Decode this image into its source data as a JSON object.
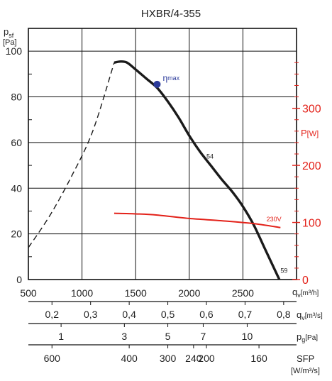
{
  "chart_data": {
    "type": "line",
    "title": "HXBR/4-355",
    "ylabel": {
      "main": "p",
      "sub": "sf",
      "unit": "[Pa]"
    },
    "y2label": {
      "main": "P",
      "unit": "[W]"
    },
    "xlabel": {
      "main": "q",
      "sub": "v",
      "unit": "[m³/h]"
    },
    "xlim": [
      500,
      3000
    ],
    "ylim": [
      0,
      110
    ],
    "y2lim": [
      0,
      440
    ],
    "x_ticks": [
      "500",
      "1000",
      "1500",
      "2000",
      "2500"
    ],
    "y_ticks": [
      "0",
      "20",
      "40",
      "60",
      "80",
      "100"
    ],
    "y2_ticks": [
      "0",
      "100",
      "200",
      "300"
    ],
    "grid": true,
    "series": [
      {
        "name": "",
        "role": "pressure-unstable",
        "style": "dashed",
        "color": "#1a1a1a",
        "points": [
          [
            500,
            14
          ],
          [
            700,
            28
          ],
          [
            900,
            45
          ],
          [
            1100,
            65
          ],
          [
            1300,
            95
          ]
        ]
      },
      {
        "name": "",
        "role": "pressure",
        "style": "solid",
        "color": "#1a1a1a",
        "points": [
          [
            1300,
            95
          ],
          [
            1360,
            95.5
          ],
          [
            1420,
            95
          ],
          [
            1500,
            92
          ],
          [
            1600,
            88
          ],
          [
            1700,
            84
          ],
          [
            1800,
            78
          ],
          [
            1900,
            71
          ],
          [
            2000,
            63
          ],
          [
            2100,
            56
          ],
          [
            2200,
            50
          ],
          [
            2300,
            44
          ],
          [
            2400,
            38.5
          ],
          [
            2500,
            32
          ],
          [
            2600,
            24
          ],
          [
            2700,
            14
          ],
          [
            2800,
            4
          ],
          [
            2840,
            0
          ]
        ]
      },
      {
        "name": "230V",
        "role": "power",
        "style": "solid",
        "color": "#e32119",
        "axis": "right",
        "points": [
          [
            1300,
            116
          ],
          [
            1500,
            115
          ],
          [
            1700,
            113
          ],
          [
            2000,
            107
          ],
          [
            2300,
            103
          ],
          [
            2600,
            98
          ],
          [
            2850,
            91
          ]
        ]
      }
    ],
    "marker": {
      "label_main": "η",
      "label_sub": "max",
      "x": 1700,
      "y": 85.5,
      "color": "#2b3a9a"
    },
    "annotations": [
      {
        "text": "54",
        "x": 2160,
        "y": 53
      },
      {
        "text": "230V",
        "x": 2720,
        "y": 25.5
      },
      {
        "text": "59",
        "x": 2850,
        "y": 3
      }
    ],
    "secondary_scales": [
      {
        "label_main": "q",
        "label_sub": "v",
        "unit": "[m³/s]",
        "ticks": [
          {
            "label": "0,2",
            "x": 720
          },
          {
            "label": "0,3",
            "x": 1080
          },
          {
            "label": "0,4",
            "x": 1440
          },
          {
            "label": "0,5",
            "x": 1800
          },
          {
            "label": "0,6",
            "x": 2160
          },
          {
            "label": "0,7",
            "x": 2520
          },
          {
            "label": "0,8",
            "x": 2880
          }
        ]
      },
      {
        "label_main": "p",
        "label_sub": "g",
        "unit": "[Pa]",
        "ticks": [
          {
            "label": "1",
            "x": 805
          },
          {
            "label": "3",
            "x": 1395
          },
          {
            "label": "5",
            "x": 1800
          },
          {
            "label": "7",
            "x": 2130
          },
          {
            "label": "10",
            "x": 2540
          }
        ]
      },
      {
        "label_main": "SFP",
        "label_sub": "",
        "unit": "[W/m³/s]",
        "ticks": [
          {
            "label": "600",
            "x": 720
          },
          {
            "label": "400",
            "x": 1440
          },
          {
            "label": "300",
            "x": 1800
          },
          {
            "label": "240",
            "x": 2040
          },
          {
            "label": "200",
            "x": 2160
          },
          {
            "label": "160",
            "x": 2650
          }
        ]
      }
    ]
  }
}
